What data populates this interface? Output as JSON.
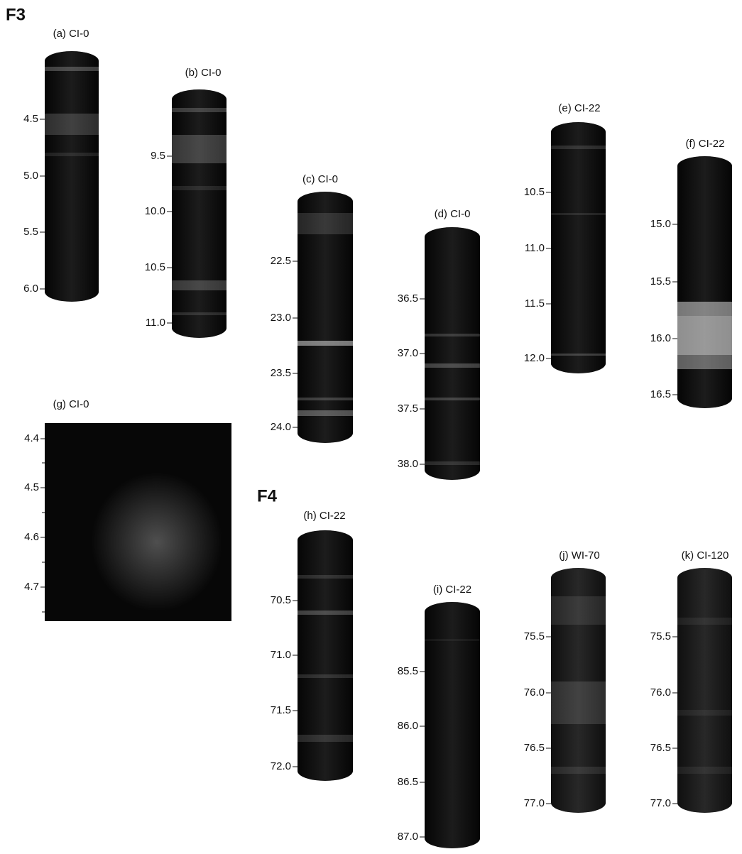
{
  "figure_labels": [
    "F3",
    "F4"
  ],
  "panels": [
    {
      "label": "(a) CI-0",
      "ticks": [
        "4.5",
        "5.0",
        "5.5",
        "6.0"
      ]
    },
    {
      "label": "(b) CI-0",
      "ticks": [
        "9.5",
        "10.0",
        "10.5",
        "11.0"
      ]
    },
    {
      "label": "(c) CI-0",
      "ticks": [
        "22.5",
        "23.0",
        "23.5",
        "24.0"
      ]
    },
    {
      "label": "(d) CI-0",
      "ticks": [
        "36.5",
        "37.0",
        "37.5",
        "38.0"
      ]
    },
    {
      "label": "(e) CI-22",
      "ticks": [
        "10.5",
        "11.0",
        "11.5",
        "12.0"
      ]
    },
    {
      "label": "(f) CI-22",
      "ticks": [
        "15.0",
        "15.5",
        "16.0",
        "16.5"
      ]
    },
    {
      "label": "(g) CI-0",
      "ticks": [
        "4.4",
        "4.5",
        "4.6",
        "4.7"
      ]
    },
    {
      "label": "(h) CI-22",
      "ticks": [
        "70.5",
        "71.0",
        "71.5",
        "72.0"
      ]
    },
    {
      "label": "(i) CI-22",
      "ticks": [
        "85.5",
        "86.0",
        "86.5",
        "87.0"
      ]
    },
    {
      "label": "(j) WI-70",
      "ticks": [
        "75.5",
        "76.0",
        "76.5",
        "77.0"
      ]
    },
    {
      "label": "(k) CI-120",
      "ticks": [
        "75.5",
        "76.0",
        "76.5",
        "77.0"
      ]
    }
  ]
}
